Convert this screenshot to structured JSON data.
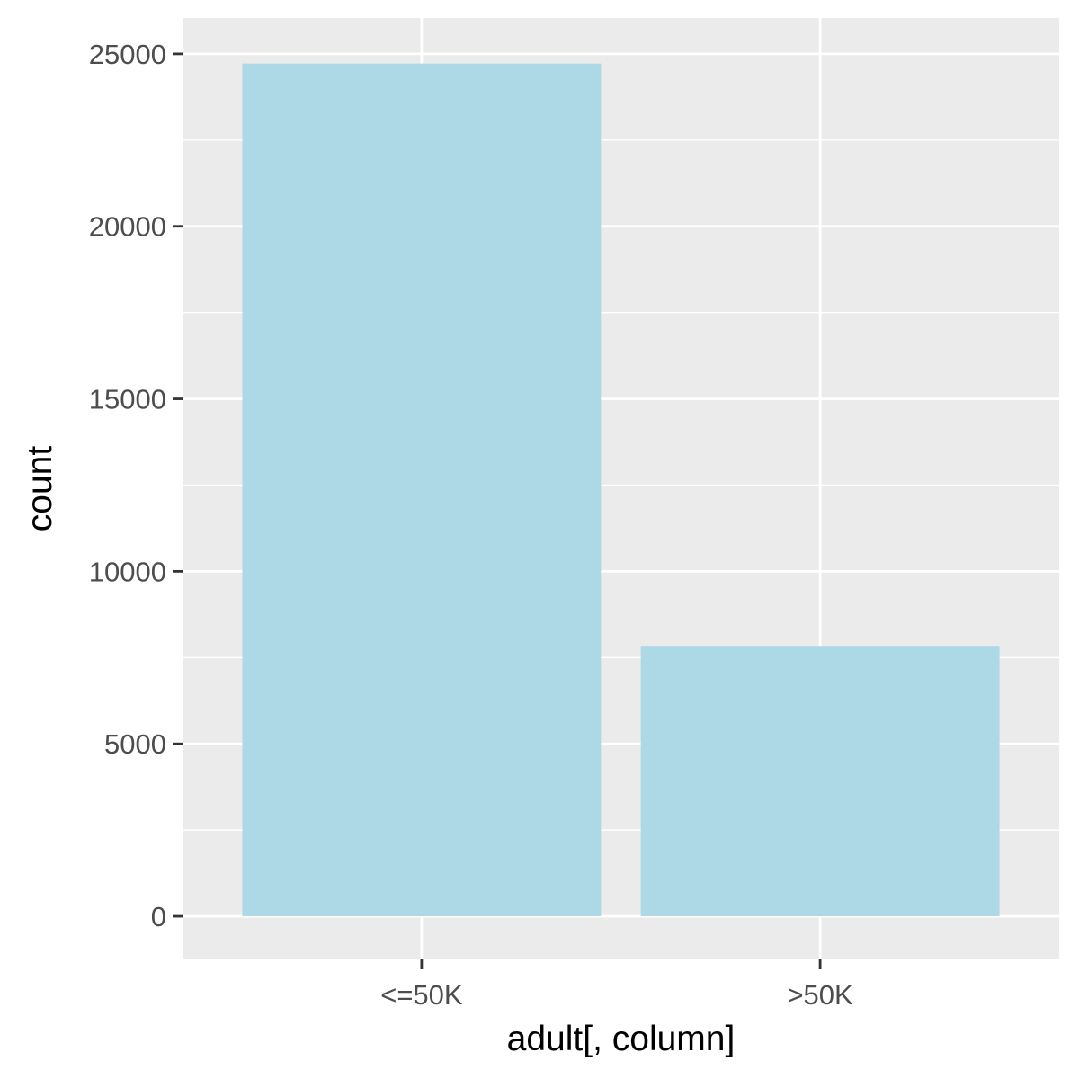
{
  "chart_data": {
    "type": "bar",
    "title": "",
    "xlabel": "adult[, column]",
    "ylabel": "count",
    "categories": [
      "<=50K",
      ">50K"
    ],
    "values": [
      24720,
      7841
    ],
    "ylim": [
      -1250,
      26040
    ],
    "yticks": [
      0,
      5000,
      10000,
      15000,
      20000,
      25000
    ],
    "ytick_labels": [
      "0",
      "5000",
      "10000",
      "15000",
      "20000",
      "25000"
    ],
    "grid": true,
    "legend": "none"
  },
  "colors": {
    "bar_fill": "#add8e6",
    "panel_background": "#ebebeb",
    "grid_line": "#ffffff",
    "tick_mark": "#333333",
    "tick_label": "#4d4d4d",
    "axis_title": "#000000"
  }
}
